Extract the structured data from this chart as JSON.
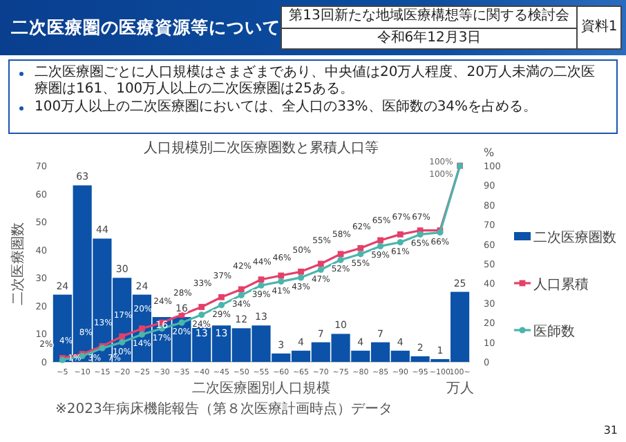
{
  "chart_data": {
    "type": "bar",
    "title": "人口規模別二次医療圏数と累積人口等",
    "xlabel": "二次医療圏別人口規模",
    "ylabel": "二次医療圏数",
    "y2label": "%",
    "annotations": [
      "二次医療圏の医療資源等について",
      "二次医療圏ごとに人口規模はさまざまであり、中央値は20万人程度、20万人未満の二次医療圏は161、100万人以上の二次医療圏は25ある。",
      "100万人以上の二次医療圏においては、全人口の33%、医師数の34%を占める。",
      "第13回新たな地域医療構想等に関する検討会",
      "令和6年12月3日",
      "資料1",
      "※2023年病床機能報告（第８次医療計画時点）データ",
      "万人",
      "31"
    ],
    "categories": [
      "~5",
      "~10",
      "~15",
      "~20",
      "~25",
      "~30",
      "~35",
      "~40",
      "~45",
      "~50",
      "~55",
      "~60",
      "~65",
      "~70",
      "~75",
      "~80",
      "~85",
      "~90",
      "~95",
      "~100",
      "100~"
    ],
    "series": [
      {
        "name": "二次医療圏数",
        "type": "bar",
        "color": "#0b52a8",
        "values": [
          24,
          63,
          44,
          30,
          24,
          16,
          16,
          13,
          13,
          12,
          13,
          3,
          4,
          7,
          10,
          4,
          7,
          4,
          2,
          1,
          25
        ]
      },
      {
        "name": "人口累積",
        "type": "line",
        "axis": "y2",
        "color": "#e4406a",
        "marker": "square",
        "values": [
          2,
          4,
          8,
          13,
          17,
          20,
          24,
          28,
          33,
          37,
          42,
          44,
          46,
          50,
          55,
          58,
          62,
          65,
          67,
          67,
          100
        ],
        "value_labels": [
          "2%",
          "4%",
          "8%",
          "13%",
          "17%",
          "20%",
          "24%",
          "28%",
          "33%",
          "37%",
          "42%",
          "44%",
          "46%",
          "50%",
          "55%",
          "58%",
          "62%",
          "65%",
          "67%",
          "67%",
          "100%"
        ]
      },
      {
        "name": "医師数",
        "type": "line",
        "axis": "y2",
        "color": "#4ab5ad",
        "marker": "circle",
        "values": [
          1,
          3,
          7,
          10,
          14,
          17,
          20,
          24,
          29,
          34,
          39,
          41,
          43,
          47,
          52,
          55,
          59,
          61,
          65,
          66,
          100
        ],
        "value_labels": [
          "1%",
          "3%",
          "7%",
          "10%",
          "14%",
          "17%",
          "20%",
          "24%",
          "29%",
          "34%",
          "39%",
          "41%",
          "43%",
          "47%",
          "52%",
          "55%",
          "59%",
          "61%",
          "65%",
          "66%",
          "100%"
        ]
      }
    ],
    "data_labels": true,
    "ylim": [
      0,
      70
    ],
    "yticks": [
      0,
      10,
      20,
      30,
      40,
      50,
      60,
      70
    ],
    "y2lim": [
      0,
      100
    ],
    "y2ticks": [
      0,
      10,
      20,
      30,
      40,
      50,
      60,
      70,
      80,
      90,
      100
    ],
    "legend": "right",
    "grid": false
  }
}
